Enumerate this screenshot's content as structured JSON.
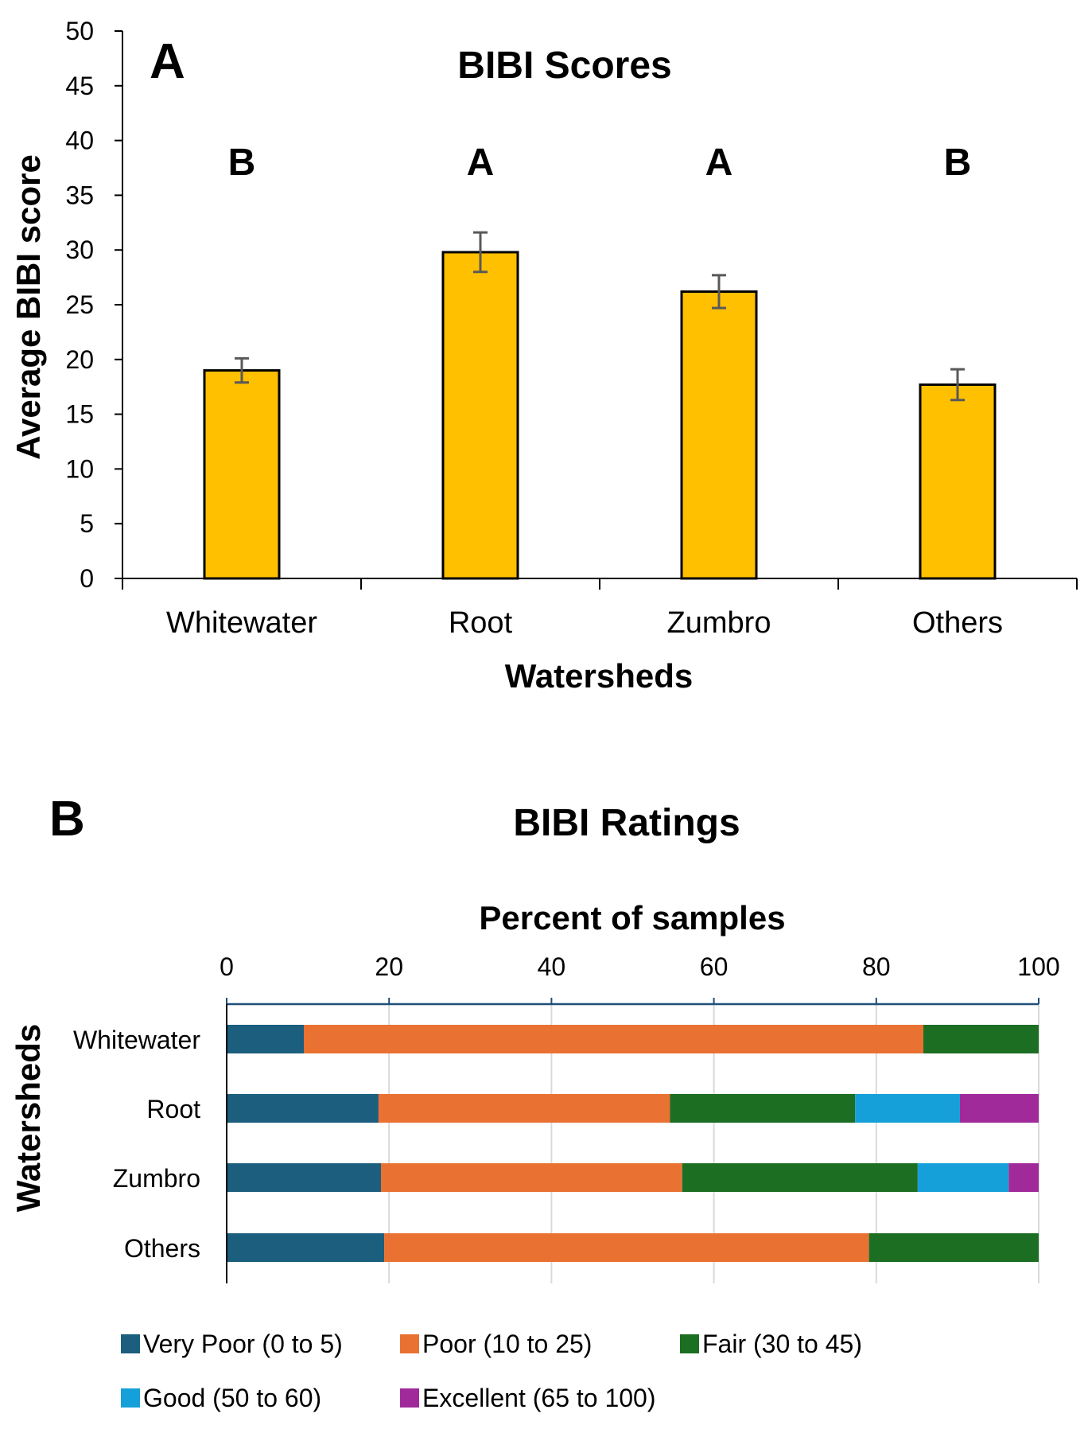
{
  "chart_data": [
    {
      "panel": "A",
      "type": "bar",
      "title": "BIBI Scores",
      "xlabel": "Watersheds",
      "ylabel": "Average BIBI score",
      "categories": [
        "Whitewater",
        "Root",
        "Zumbro",
        "Others"
      ],
      "values": [
        19.0,
        29.8,
        26.2,
        17.7
      ],
      "error": [
        1.1,
        1.8,
        1.5,
        1.4
      ],
      "significance": [
        "B",
        "A",
        "A",
        "B"
      ],
      "ylim": [
        0,
        50
      ],
      "yticks": [
        0,
        5,
        10,
        15,
        20,
        25,
        30,
        35,
        40,
        45,
        50
      ],
      "bar_color": "#FFC000",
      "error_color": "#595959",
      "grid": false
    },
    {
      "panel": "B",
      "type": "bar",
      "orientation": "horizontal-stacked",
      "title": "BIBI Ratings",
      "xlabel": "Percent of samples",
      "ylabel": "Watersheds",
      "categories": [
        "Whitewater",
        "Root",
        "Zumbro",
        "Others"
      ],
      "xlim": [
        0,
        100
      ],
      "xticks": [
        0,
        20,
        40,
        60,
        80,
        100
      ],
      "grid": true,
      "legend_position": "bottom",
      "series": [
        {
          "name": "Very Poor (0 to 5)",
          "color": "#1B5E7E",
          "values": [
            9.5,
            18.7,
            19.0,
            19.4
          ]
        },
        {
          "name": "Poor (10 to 25)",
          "color": "#E97132",
          "values": [
            76.3,
            35.9,
            37.1,
            59.7
          ]
        },
        {
          "name": "Fair (30 to 45)",
          "color": "#1C6E23",
          "values": [
            14.2,
            22.8,
            29.0,
            20.9
          ]
        },
        {
          "name": "Good (50 to 60)",
          "color": "#15A0D9",
          "values": [
            0,
            12.9,
            11.2,
            0
          ]
        },
        {
          "name": "Excellent (65 to 100)",
          "color": "#A12A9A",
          "values": [
            0,
            9.7,
            3.7,
            0
          ]
        }
      ]
    }
  ]
}
